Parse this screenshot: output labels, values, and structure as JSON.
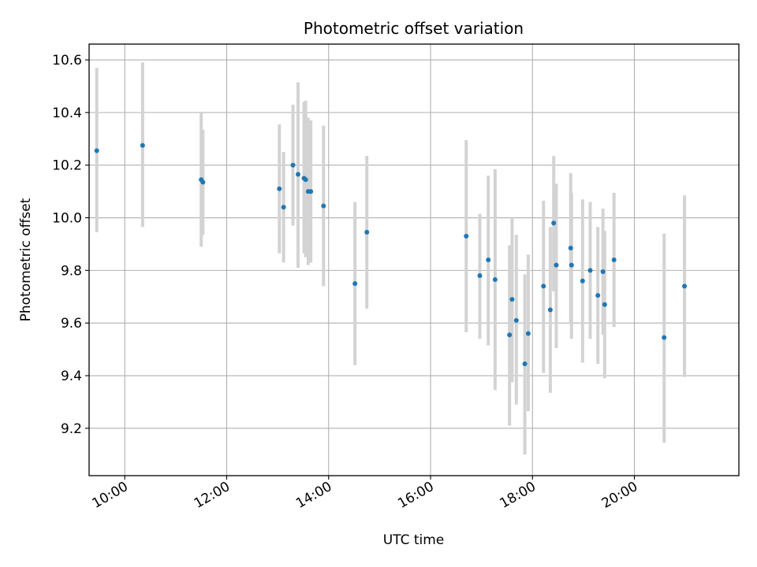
{
  "chart_data": {
    "type": "scatter",
    "title": "Photometric offset variation",
    "xlabel": "UTC time",
    "ylabel": "Photometric offset",
    "xlim": [
      "09:18",
      "22:03"
    ],
    "ylim": [
      9.02,
      10.66
    ],
    "x_ticks": [
      "10:00",
      "12:00",
      "14:00",
      "16:00",
      "18:00",
      "20:00"
    ],
    "y_ticks": [
      "9.2",
      "9.4",
      "9.6",
      "9.8",
      "10.0",
      "10.2",
      "10.4",
      "10.6"
    ],
    "grid": true,
    "colors": {
      "point": "#1f77b4",
      "error_bar": "#d3d3d3",
      "grid": "#b0b0b0"
    },
    "points": [
      {
        "t": "09:27",
        "y": 10.255,
        "lo": 9.945,
        "hi": 10.57
      },
      {
        "t": "10:21",
        "y": 10.275,
        "lo": 9.965,
        "hi": 10.59
      },
      {
        "t": "11:30",
        "y": 10.145,
        "lo": 9.89,
        "hi": 10.4
      },
      {
        "t": "11:32",
        "y": 10.135,
        "lo": 9.935,
        "hi": 10.335
      },
      {
        "t": "13:02",
        "y": 10.11,
        "lo": 9.865,
        "hi": 10.355
      },
      {
        "t": "13:07",
        "y": 10.04,
        "lo": 9.83,
        "hi": 10.25
      },
      {
        "t": "13:18",
        "y": 10.2,
        "lo": 9.97,
        "hi": 10.43
      },
      {
        "t": "13:24",
        "y": 10.165,
        "lo": 9.81,
        "hi": 10.515
      },
      {
        "t": "13:31",
        "y": 10.15,
        "lo": 9.865,
        "hi": 10.44
      },
      {
        "t": "13:33",
        "y": 10.145,
        "lo": 9.85,
        "hi": 10.445
      },
      {
        "t": "13:36",
        "y": 10.1,
        "lo": 9.82,
        "hi": 10.38
      },
      {
        "t": "13:39",
        "y": 10.1,
        "lo": 9.83,
        "hi": 10.37
      },
      {
        "t": "13:54",
        "y": 10.045,
        "lo": 9.74,
        "hi": 10.35
      },
      {
        "t": "14:31",
        "y": 9.75,
        "lo": 9.44,
        "hi": 10.06
      },
      {
        "t": "14:45",
        "y": 9.945,
        "lo": 9.655,
        "hi": 10.235
      },
      {
        "t": "16:42",
        "y": 9.93,
        "lo": 9.565,
        "hi": 10.295
      },
      {
        "t": "16:58",
        "y": 9.78,
        "lo": 9.54,
        "hi": 10.015
      },
      {
        "t": "17:08",
        "y": 9.84,
        "lo": 9.515,
        "hi": 10.16
      },
      {
        "t": "17:16",
        "y": 9.765,
        "lo": 9.345,
        "hi": 10.185
      },
      {
        "t": "17:33",
        "y": 9.555,
        "lo": 9.21,
        "hi": 9.895
      },
      {
        "t": "17:36",
        "y": 9.69,
        "lo": 9.375,
        "hi": 10.0
      },
      {
        "t": "17:41",
        "y": 9.61,
        "lo": 9.29,
        "hi": 9.935
      },
      {
        "t": "17:51",
        "y": 9.445,
        "lo": 9.1,
        "hi": 9.785
      },
      {
        "t": "17:55",
        "y": 9.56,
        "lo": 9.265,
        "hi": 9.86
      },
      {
        "t": "18:13",
        "y": 9.74,
        "lo": 9.41,
        "hi": 10.065
      },
      {
        "t": "18:21",
        "y": 9.65,
        "lo": 9.335,
        "hi": 9.965
      },
      {
        "t": "18:25",
        "y": 9.98,
        "lo": 9.72,
        "hi": 10.235
      },
      {
        "t": "18:28",
        "y": 9.82,
        "lo": 9.505,
        "hi": 10.13
      },
      {
        "t": "18:45",
        "y": 9.885,
        "lo": 9.6,
        "hi": 10.17
      },
      {
        "t": "18:46",
        "y": 9.82,
        "lo": 9.54,
        "hi": 10.095
      },
      {
        "t": "18:59",
        "y": 9.76,
        "lo": 9.45,
        "hi": 10.07
      },
      {
        "t": "19:08",
        "y": 9.8,
        "lo": 9.54,
        "hi": 10.06
      },
      {
        "t": "19:17",
        "y": 9.705,
        "lo": 9.445,
        "hi": 9.965
      },
      {
        "t": "19:23",
        "y": 9.795,
        "lo": 9.555,
        "hi": 10.035
      },
      {
        "t": "19:25",
        "y": 9.67,
        "lo": 9.39,
        "hi": 9.95
      },
      {
        "t": "19:36",
        "y": 9.84,
        "lo": 9.585,
        "hi": 10.095
      },
      {
        "t": "20:35",
        "y": 9.545,
        "lo": 9.145,
        "hi": 9.94
      },
      {
        "t": "20:59",
        "y": 9.74,
        "lo": 9.395,
        "hi": 10.085
      }
    ]
  }
}
